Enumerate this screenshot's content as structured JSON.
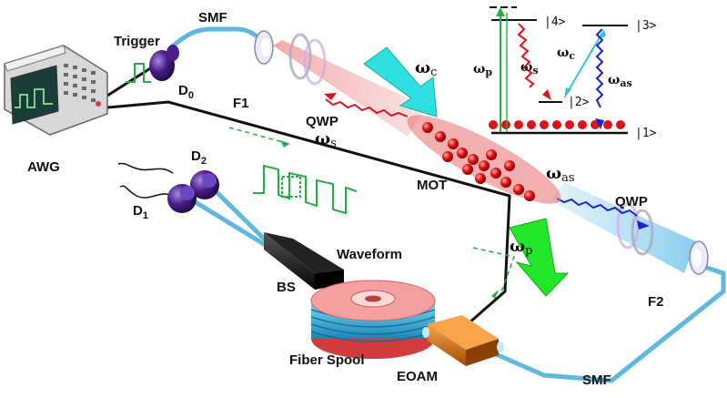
{
  "labels": {
    "trigger": "Trigger",
    "smf_top": "SMF",
    "smf_bottom": "SMF",
    "awg": "AWG",
    "d0": "D",
    "d0_sub": "0",
    "d1": "D",
    "d1_sub": "1",
    "d2": "D",
    "d2_sub": "2",
    "f1": "F1",
    "f2": "F2",
    "qwp_left": "QWP",
    "qwp_right": "QWP",
    "mot": "MOT",
    "waveform": "Waveform",
    "bs": "BS",
    "fiber_spool": "Fiber Spool",
    "eoam": "EOAM"
  },
  "symbols": {
    "omega": "ω",
    "s": "s",
    "c": "c",
    "p": "p",
    "as": "as"
  },
  "levels": {
    "l1": "|1>",
    "l2": "|2>",
    "l3": "|3>",
    "l4": "|4>"
  },
  "colors": {
    "fiber": "#5fb8e0",
    "cable": "#111111",
    "detector": "#4b1e8c",
    "pump_arrow": "#22e62a",
    "coupling_arrow": "#2fe0e0",
    "stokes": "#e0101a",
    "antistokes": "#1a20d8",
    "atom": "#e01010",
    "waveform": "#22b040",
    "spool": "#f08c8c",
    "eoam": "#d9720d"
  }
}
